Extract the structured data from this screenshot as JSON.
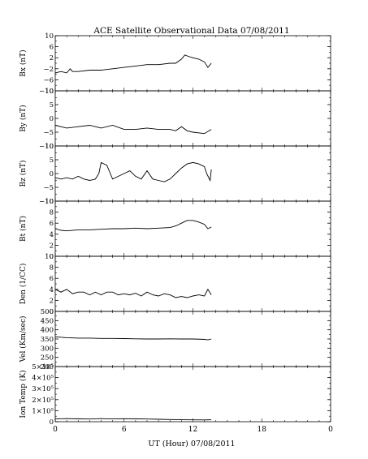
{
  "title": "ACE Satellite Observational Data   07/08/2011",
  "xlabel": "UT (Hour)   07/08/2011",
  "chart_data": [
    {
      "type": "line",
      "ylabel": "Bx (nT)",
      "x_ticks": [
        "0",
        "6",
        "12",
        "18",
        "0"
      ],
      "xlim": [
        0,
        24
      ],
      "ylim": [
        -10,
        10
      ],
      "yticks": [
        10,
        6,
        2,
        -2,
        -6,
        -10
      ],
      "y_tick_labels": [
        "10",
        "6",
        "2",
        "−2",
        "−6",
        "−10"
      ],
      "series": [
        {
          "x": [
            0,
            0.5,
            1,
            1.3,
            1.5,
            2,
            3,
            4,
            5,
            6,
            7,
            8,
            9,
            10,
            10.5,
            11,
            11.3,
            11.6,
            12,
            12.5,
            13,
            13.3,
            13.6
          ],
          "y": [
            -3.5,
            -3.0,
            -3.5,
            -2,
            -3,
            -3,
            -2.5,
            -2.5,
            -2,
            -1.5,
            -1,
            -0.5,
            -0.5,
            0,
            0,
            1.5,
            3,
            2.5,
            2,
            1.5,
            0.5,
            -1.5,
            0
          ]
        }
      ]
    },
    {
      "type": "line",
      "ylabel": "By (nT)",
      "x_ticks": [
        "0",
        "6",
        "12",
        "18",
        "0"
      ],
      "xlim": [
        0,
        24
      ],
      "ylim": [
        -10,
        10
      ],
      "yticks": [
        10,
        5,
        0,
        -5,
        -10
      ],
      "y_tick_labels": [
        "10",
        "5",
        "0",
        "−5",
        "−10"
      ],
      "series": [
        {
          "x": [
            0,
            0.5,
            1,
            2,
            3,
            4,
            5,
            6,
            7,
            8,
            9,
            10,
            10.5,
            11,
            11.5,
            12,
            13,
            13.6
          ],
          "y": [
            -2.5,
            -3,
            -3.5,
            -3,
            -2.5,
            -3.5,
            -2.5,
            -4,
            -4,
            -3.5,
            -4,
            -4,
            -4.5,
            -3,
            -4.5,
            -5,
            -5.5,
            -4
          ]
        }
      ]
    },
    {
      "type": "line",
      "ylabel": "Bz (nT)",
      "x_ticks": [
        "0",
        "6",
        "12",
        "18",
        "0"
      ],
      "xlim": [
        0,
        24
      ],
      "ylim": [
        -10,
        10
      ],
      "yticks": [
        10,
        5,
        0,
        -5,
        -10
      ],
      "y_tick_labels": [
        "10",
        "5",
        "0",
        "−5",
        "−10"
      ],
      "series": [
        {
          "x": [
            0,
            0.5,
            1,
            1.5,
            2,
            2.5,
            3,
            3.5,
            3.8,
            4.0,
            4.5,
            5,
            5.5,
            6,
            6.5,
            7,
            7.5,
            8,
            8.5,
            9,
            9.5,
            10,
            10.5,
            11,
            11.5,
            12,
            12.5,
            13,
            13.2,
            13.5,
            13.6
          ],
          "y": [
            -1.5,
            -2,
            -1.5,
            -2,
            -1,
            -2,
            -2.5,
            -2,
            0,
            4,
            3,
            -2,
            -1,
            0,
            1,
            -1,
            -2,
            1,
            -2,
            -2.5,
            -3,
            -2,
            0,
            2,
            3.5,
            4,
            3.5,
            2.5,
            0,
            -2.5,
            1.5
          ]
        }
      ]
    },
    {
      "type": "line",
      "ylabel": "Bt (nT)",
      "x_ticks": [
        "0",
        "6",
        "12",
        "18",
        "0"
      ],
      "xlim": [
        0,
        24
      ],
      "ylim": [
        0,
        10
      ],
      "yticks": [
        10,
        8,
        6,
        4,
        2,
        0
      ],
      "y_tick_labels": [
        "10",
        "8",
        "6",
        "4",
        "2",
        "0"
      ],
      "series": [
        {
          "x": [
            0,
            0.5,
            1,
            2,
            3,
            4,
            5,
            6,
            7,
            8,
            9,
            10,
            10.5,
            11,
            11.5,
            12,
            12.5,
            13,
            13.3,
            13.6
          ],
          "y": [
            5,
            4.7,
            4.6,
            4.8,
            4.8,
            4.9,
            5.0,
            5.0,
            5.1,
            5.0,
            5.1,
            5.2,
            5.5,
            6.0,
            6.5,
            6.5,
            6.2,
            5.8,
            5.0,
            5.3
          ]
        }
      ]
    },
    {
      "type": "line",
      "ylabel": "Den (1/CC)",
      "x_ticks": [
        "0",
        "6",
        "12",
        "18",
        "0"
      ],
      "xlim": [
        0,
        24
      ],
      "ylim": [
        0,
        10
      ],
      "yticks": [
        10,
        8,
        6,
        4,
        2,
        0
      ],
      "y_tick_labels": [
        "10",
        "8",
        "6",
        "4",
        "2",
        "0"
      ],
      "series": [
        {
          "x": [
            0,
            0.5,
            1,
            1.5,
            2,
            2.5,
            3,
            3.5,
            4,
            4.5,
            5,
            5.5,
            6,
            6.5,
            7,
            7.5,
            8,
            8.5,
            9,
            9.5,
            10,
            10.5,
            11,
            11.5,
            12,
            12.5,
            13,
            13.3,
            13.6
          ],
          "y": [
            4,
            3.5,
            4,
            3.2,
            3.5,
            3.5,
            3.0,
            3.5,
            3.0,
            3.5,
            3.5,
            3.0,
            3.2,
            3.0,
            3.3,
            2.8,
            3.5,
            3.0,
            2.8,
            3.2,
            3.0,
            2.5,
            2.7,
            2.5,
            2.8,
            3.0,
            2.8,
            4.0,
            3.0
          ]
        }
      ]
    },
    {
      "type": "line",
      "ylabel": "Vel (Km/sec)",
      "x_ticks": [
        "0",
        "6",
        "12",
        "18",
        "0"
      ],
      "xlim": [
        0,
        24
      ],
      "ylim": [
        200,
        500
      ],
      "yticks": [
        500,
        450,
        400,
        350,
        300,
        250,
        200
      ],
      "y_tick_labels": [
        "500",
        "450",
        "400",
        "350",
        "300",
        "250",
        "200"
      ],
      "series": [
        {
          "x": [
            0,
            1,
            2,
            3,
            4,
            5,
            6,
            7,
            8,
            9,
            10,
            11,
            12,
            13,
            13.3,
            13.6
          ],
          "y": [
            362,
            357,
            355,
            355,
            353,
            353,
            352,
            351,
            350,
            350,
            351,
            350,
            350,
            348,
            345,
            350
          ]
        }
      ]
    },
    {
      "type": "line",
      "ylabel": "Ion Temp (K)",
      "x_ticks": [
        "0",
        "6",
        "12",
        "18",
        "0"
      ],
      "xlim": [
        0,
        24
      ],
      "ylim": [
        0,
        500000
      ],
      "yticks": [
        500000,
        400000,
        300000,
        200000,
        100000,
        0
      ],
      "y_tick_labels": [
        "5×10⁵",
        "4×10⁵",
        "3×10⁵",
        "2×10⁵",
        "1×10⁵",
        "0"
      ],
      "series": [
        {
          "x": [
            0,
            1,
            2,
            3,
            4,
            5,
            6,
            7,
            8,
            9,
            10,
            11,
            12,
            13,
            13.6
          ],
          "y": [
            25000,
            28000,
            26000,
            24000,
            28000,
            25000,
            27000,
            26000,
            24000,
            22000,
            20000,
            18000,
            17000,
            16000,
            18000
          ]
        }
      ]
    }
  ]
}
